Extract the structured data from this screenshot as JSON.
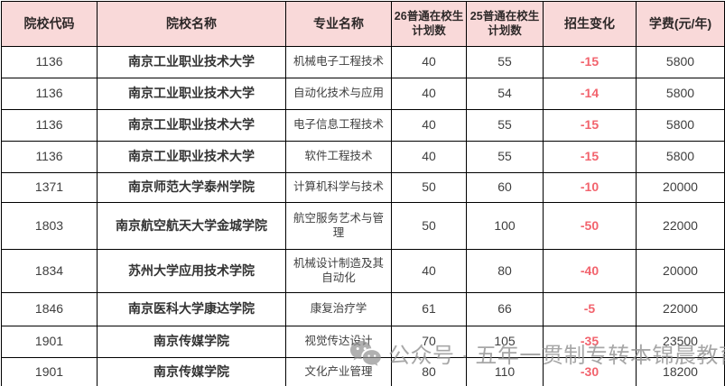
{
  "chart_data": {
    "type": "table",
    "title": "",
    "columns": [
      "院校代码",
      "院校名称",
      "专业名称",
      "26普通在校生计划数",
      "25普通在校生计划数",
      "招生变化",
      "学费(元/年)"
    ],
    "rows": [
      {
        "code": "1136",
        "name": "南京工业职业技术大学",
        "major": "机械电子工程技术",
        "plan26": "40",
        "plan25": "55",
        "change": "-15",
        "fee": "5800"
      },
      {
        "code": "1136",
        "name": "南京工业职业技术大学",
        "major": "自动化技术与应用",
        "plan26": "40",
        "plan25": "54",
        "change": "-14",
        "fee": "5800"
      },
      {
        "code": "1136",
        "name": "南京工业职业技术大学",
        "major": "电子信息工程技术",
        "plan26": "40",
        "plan25": "55",
        "change": "-15",
        "fee": "5800"
      },
      {
        "code": "1136",
        "name": "南京工业职业技术大学",
        "major": "软件工程技术",
        "plan26": "40",
        "plan25": "55",
        "change": "-15",
        "fee": "5800"
      },
      {
        "code": "1371",
        "name": "南京师范大学泰州学院",
        "major": "计算机科学与技术",
        "plan26": "50",
        "plan25": "60",
        "change": "-10",
        "fee": "20000"
      },
      {
        "code": "1803",
        "name": "南京航空航天大学金城学院",
        "major": "航空服务艺术与管理",
        "plan26": "50",
        "plan25": "100",
        "change": "-50",
        "fee": "22000"
      },
      {
        "code": "1834",
        "name": "苏州大学应用技术学院",
        "major": "机械设计制造及其自动化",
        "plan26": "40",
        "plan25": "80",
        "change": "-40",
        "fee": "20000"
      },
      {
        "code": "1846",
        "name": "南京医科大学康达学院",
        "major": "康复治疗学",
        "plan26": "61",
        "plan25": "66",
        "change": "-5",
        "fee": "22000"
      },
      {
        "code": "1901",
        "name": "南京传媒学院",
        "major": "视觉传达设计",
        "plan26": "70",
        "plan25": "105",
        "change": "-35",
        "fee": "23500"
      },
      {
        "code": "1901",
        "name": "南京传媒学院",
        "major": "文化产业管理",
        "plan26": "80",
        "plan25": "110",
        "change": "-30",
        "fee": "18200"
      }
    ]
  },
  "watermark": {
    "icon": "wechat-icon",
    "text": "公众号 · 五年一贯制专转本锦晨教育"
  },
  "colors": {
    "header_bg": "#f9d9d9",
    "header_text": "#2d2828",
    "body_text": "#3f3f3f",
    "change_red": "#f2636d",
    "border": "#000000",
    "watermark_gray": "#919191"
  }
}
